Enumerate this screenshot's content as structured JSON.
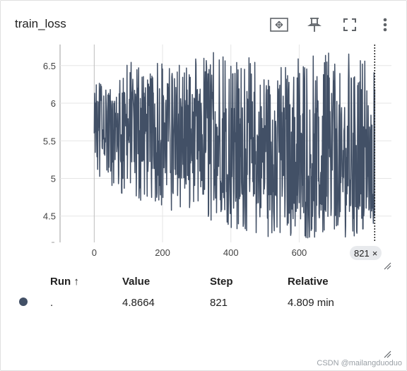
{
  "card": {
    "title": "train_loss",
    "toolbar": [
      {
        "name": "fit-domain-icon"
      },
      {
        "name": "pin-icon"
      },
      {
        "name": "fullscreen-icon"
      },
      {
        "name": "more-vert-icon"
      }
    ]
  },
  "colors": {
    "series": "#425066",
    "grid": "#e5e5e5",
    "axis": "#9e9e9e",
    "marker": "#425066"
  },
  "chart_data": {
    "type": "line",
    "title": "train_loss",
    "xlim": [
      -100,
      870
    ],
    "ylim": [
      4.15,
      6.78
    ],
    "x_ticks": [
      0,
      200,
      400,
      600
    ],
    "y_ticks": [
      4.5,
      5,
      5.5,
      6,
      6.5
    ],
    "x_tick_labels": [
      "0",
      "200",
      "400",
      "600"
    ],
    "y_tick_labels": [
      "4.5",
      "5",
      "5.5",
      "6",
      "6.5"
    ],
    "grid": true,
    "series": [
      {
        "x_start": 0,
        "x_end": 821,
        "band_x": [
          0,
          60,
          120,
          180,
          240,
          300,
          360,
          420,
          480,
          540,
          600,
          660,
          720,
          780,
          821
        ],
        "band_low": [
          4.9,
          4.75,
          4.7,
          4.65,
          4.55,
          4.5,
          4.4,
          4.3,
          4.25,
          4.2,
          4.2,
          4.2,
          4.2,
          4.25,
          4.3
        ],
        "band_high": [
          6.3,
          6.4,
          6.6,
          6.6,
          6.5,
          6.6,
          6.7,
          6.7,
          6.6,
          6.5,
          6.6,
          6.7,
          6.7,
          6.6,
          6.5
        ],
        "band_mid": [
          5.75,
          5.7,
          5.65,
          5.6,
          5.55,
          5.5,
          5.45,
          5.4,
          5.35,
          5.3,
          5.25,
          5.2,
          5.15,
          5.1,
          5.05
        ]
      }
    ],
    "hover_step": 821
  },
  "step_chip": {
    "label": "821",
    "close": "×"
  },
  "runs_table": {
    "headers": {
      "run": "Run ↑",
      "value": "Value",
      "step": "Step",
      "relative": "Relative"
    },
    "rows": [
      {
        "run": ".",
        "value": "4.8664",
        "step": "821",
        "relative": "4.809 min"
      }
    ]
  },
  "watermark": "CSDN @mailangduoduo"
}
